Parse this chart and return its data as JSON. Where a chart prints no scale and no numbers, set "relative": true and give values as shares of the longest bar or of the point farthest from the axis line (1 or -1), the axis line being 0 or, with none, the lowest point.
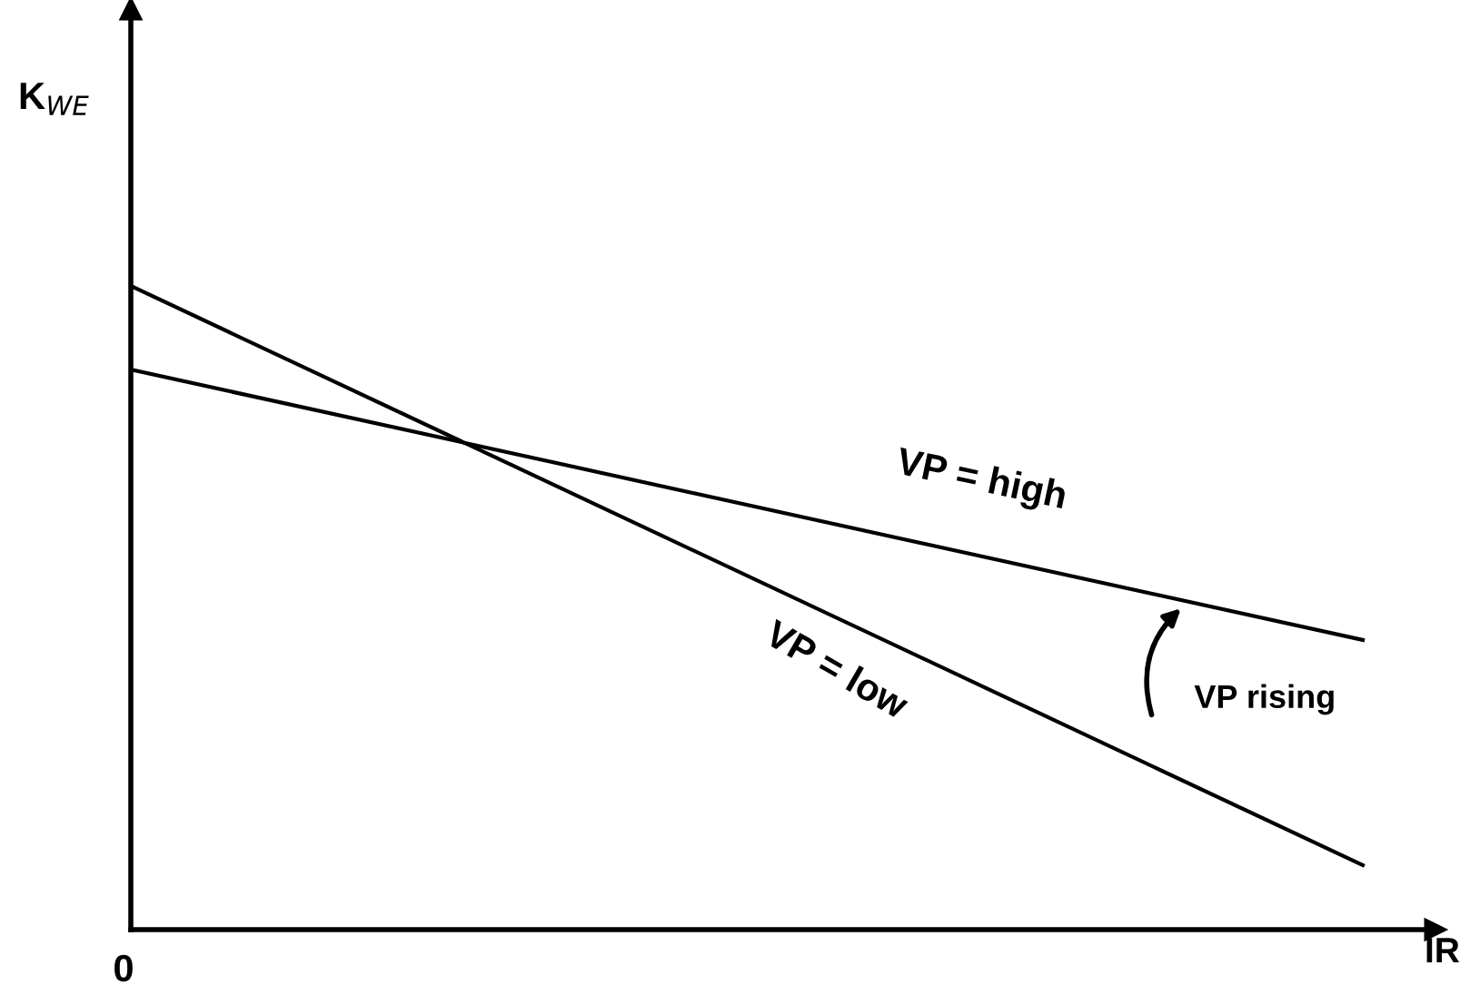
{
  "chart_data": {
    "type": "line",
    "relative": true,
    "ylabel": "K$_{WE}$",
    "xlabel": "IR",
    "categories": [
      null,
      null
    ],
    "series": [
      {
        "color": "#000000",
        "values": [
          0.87,
          0.45
        ]
      },
      {
        "color": "#000000",
        "values": [
          1,
          0.1
        ]
      }
    ],
    "annotations": [
      "VP = high",
      "VP = low",
      "VP rising",
      "0"
    ],
    "legend": false,
    "marker": "none",
    "line_style": "solid"
  }
}
